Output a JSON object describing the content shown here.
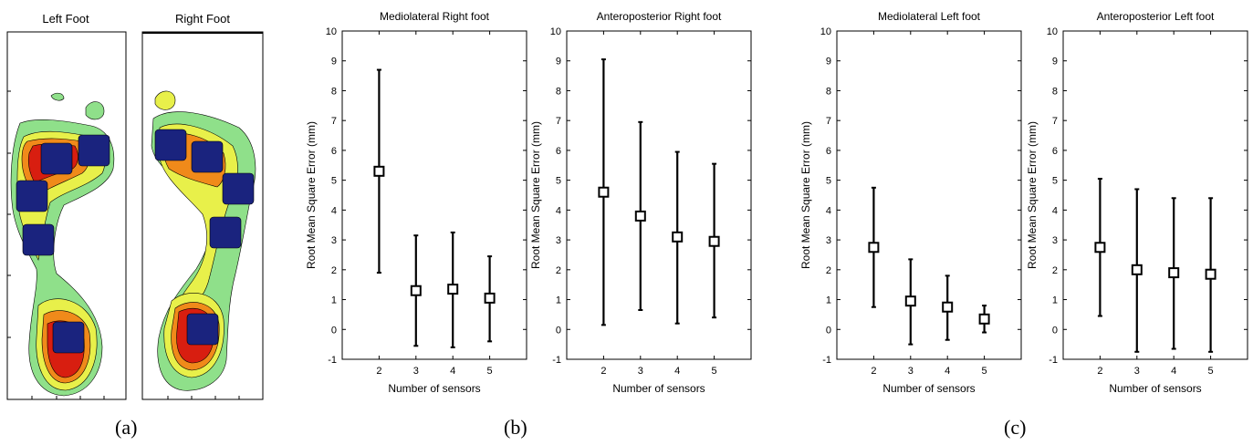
{
  "foot_maps": {
    "left_title": "Left Foot",
    "right_title": "Right Foot",
    "colors": {
      "sensor": "#1a237e",
      "contour_outer": "#8fe08a",
      "contour_mid": "#e8f04a",
      "contour_hot": "#f08a1a",
      "contour_peak": "#d81e10"
    }
  },
  "panel_labels": [
    "(a)",
    "(b)",
    "(c)"
  ],
  "chart_data": [
    {
      "type": "scatter",
      "title": "Mediolateral Right foot",
      "xlabel": "Number of sensors",
      "ylabel": "Root Mean Square Error (mm)",
      "x": [
        2,
        3,
        4,
        5
      ],
      "y": [
        5.3,
        1.3,
        1.35,
        1.05
      ],
      "err_low": [
        1.9,
        -0.55,
        -0.6,
        -0.4
      ],
      "err_high": [
        8.7,
        3.15,
        3.25,
        2.45
      ],
      "xlim": [
        1,
        6
      ],
      "ylim": [
        -1,
        10
      ],
      "xticks": [
        "2",
        "3",
        "4",
        "5"
      ],
      "yticks": [
        "-1",
        "0",
        "1",
        "2",
        "3",
        "4",
        "5",
        "6",
        "7",
        "8",
        "9",
        "10"
      ],
      "grid": false
    },
    {
      "type": "scatter",
      "title": "Anteroposterior Right foot",
      "xlabel": "Number of sensors",
      "ylabel": "Root Mean Square Error (mm)",
      "x": [
        2,
        3,
        4,
        5
      ],
      "y": [
        4.6,
        3.8,
        3.1,
        2.95
      ],
      "err_low": [
        0.15,
        0.65,
        0.2,
        0.4
      ],
      "err_high": [
        9.05,
        6.95,
        5.95,
        5.55
      ],
      "xlim": [
        1,
        6
      ],
      "ylim": [
        -1,
        10
      ],
      "xticks": [
        "2",
        "3",
        "4",
        "5"
      ],
      "yticks": [
        "-1",
        "0",
        "1",
        "2",
        "3",
        "4",
        "5",
        "6",
        "7",
        "8",
        "9",
        "10"
      ],
      "grid": false
    },
    {
      "type": "scatter",
      "title": "Mediolateral Left foot",
      "xlabel": "Number of sensors",
      "ylabel": "Root Mean Square Error (mm)",
      "x": [
        2,
        3,
        4,
        5
      ],
      "y": [
        2.75,
        0.95,
        0.75,
        0.35
      ],
      "err_low": [
        0.75,
        -0.5,
        -0.35,
        -0.1
      ],
      "err_high": [
        4.75,
        2.35,
        1.8,
        0.8
      ],
      "xlim": [
        1,
        6
      ],
      "ylim": [
        -1,
        10
      ],
      "xticks": [
        "2",
        "3",
        "4",
        "5"
      ],
      "yticks": [
        "-1",
        "0",
        "1",
        "2",
        "3",
        "4",
        "5",
        "6",
        "7",
        "8",
        "9",
        "10"
      ],
      "grid": false
    },
    {
      "type": "scatter",
      "title": "Anteroposterior Left foot",
      "xlabel": "Number of sensors",
      "ylabel": "Root Mean Square Error (mm)",
      "x": [
        2,
        3,
        4,
        5
      ],
      "y": [
        2.75,
        2.0,
        1.9,
        1.85
      ],
      "err_low": [
        0.45,
        -0.75,
        -0.65,
        -0.75
      ],
      "err_high": [
        5.05,
        4.7,
        4.4,
        4.4
      ],
      "xlim": [
        1,
        6
      ],
      "ylim": [
        -1,
        10
      ],
      "xticks": [
        "2",
        "3",
        "4",
        "5"
      ],
      "yticks": [
        "-1",
        "0",
        "1",
        "2",
        "3",
        "4",
        "5",
        "6",
        "7",
        "8",
        "9",
        "10"
      ],
      "grid": false
    }
  ]
}
